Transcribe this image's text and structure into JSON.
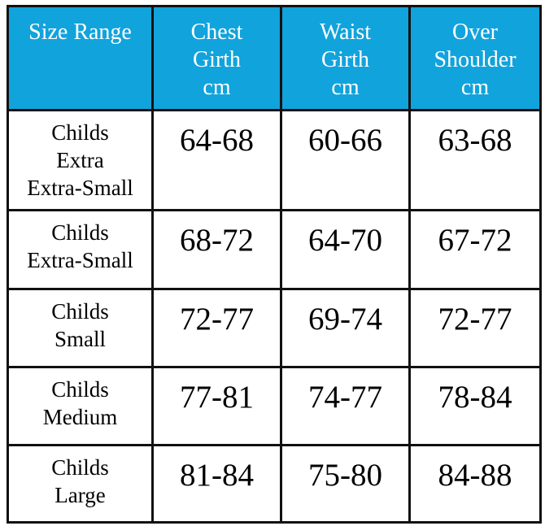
{
  "table": {
    "header": [
      "Size Range",
      "Chest\nGirth\ncm",
      "Waist\nGirth\ncm",
      "Over\nShoulder\ncm"
    ],
    "rows": [
      [
        "Childs\nExtra\nExtra-Small",
        "64-68",
        "60-66",
        "63-68"
      ],
      [
        "Childs\nExtra-Small",
        "68-72",
        "64-70",
        "67-72"
      ],
      [
        "Childs\nSmall",
        "72-77",
        "69-74",
        "72-77"
      ],
      [
        "Childs\nMedium",
        "77-81",
        "74-77",
        "78-84"
      ],
      [
        "Childs\nLarge",
        "81-84",
        "75-80",
        "84-88"
      ]
    ]
  }
}
